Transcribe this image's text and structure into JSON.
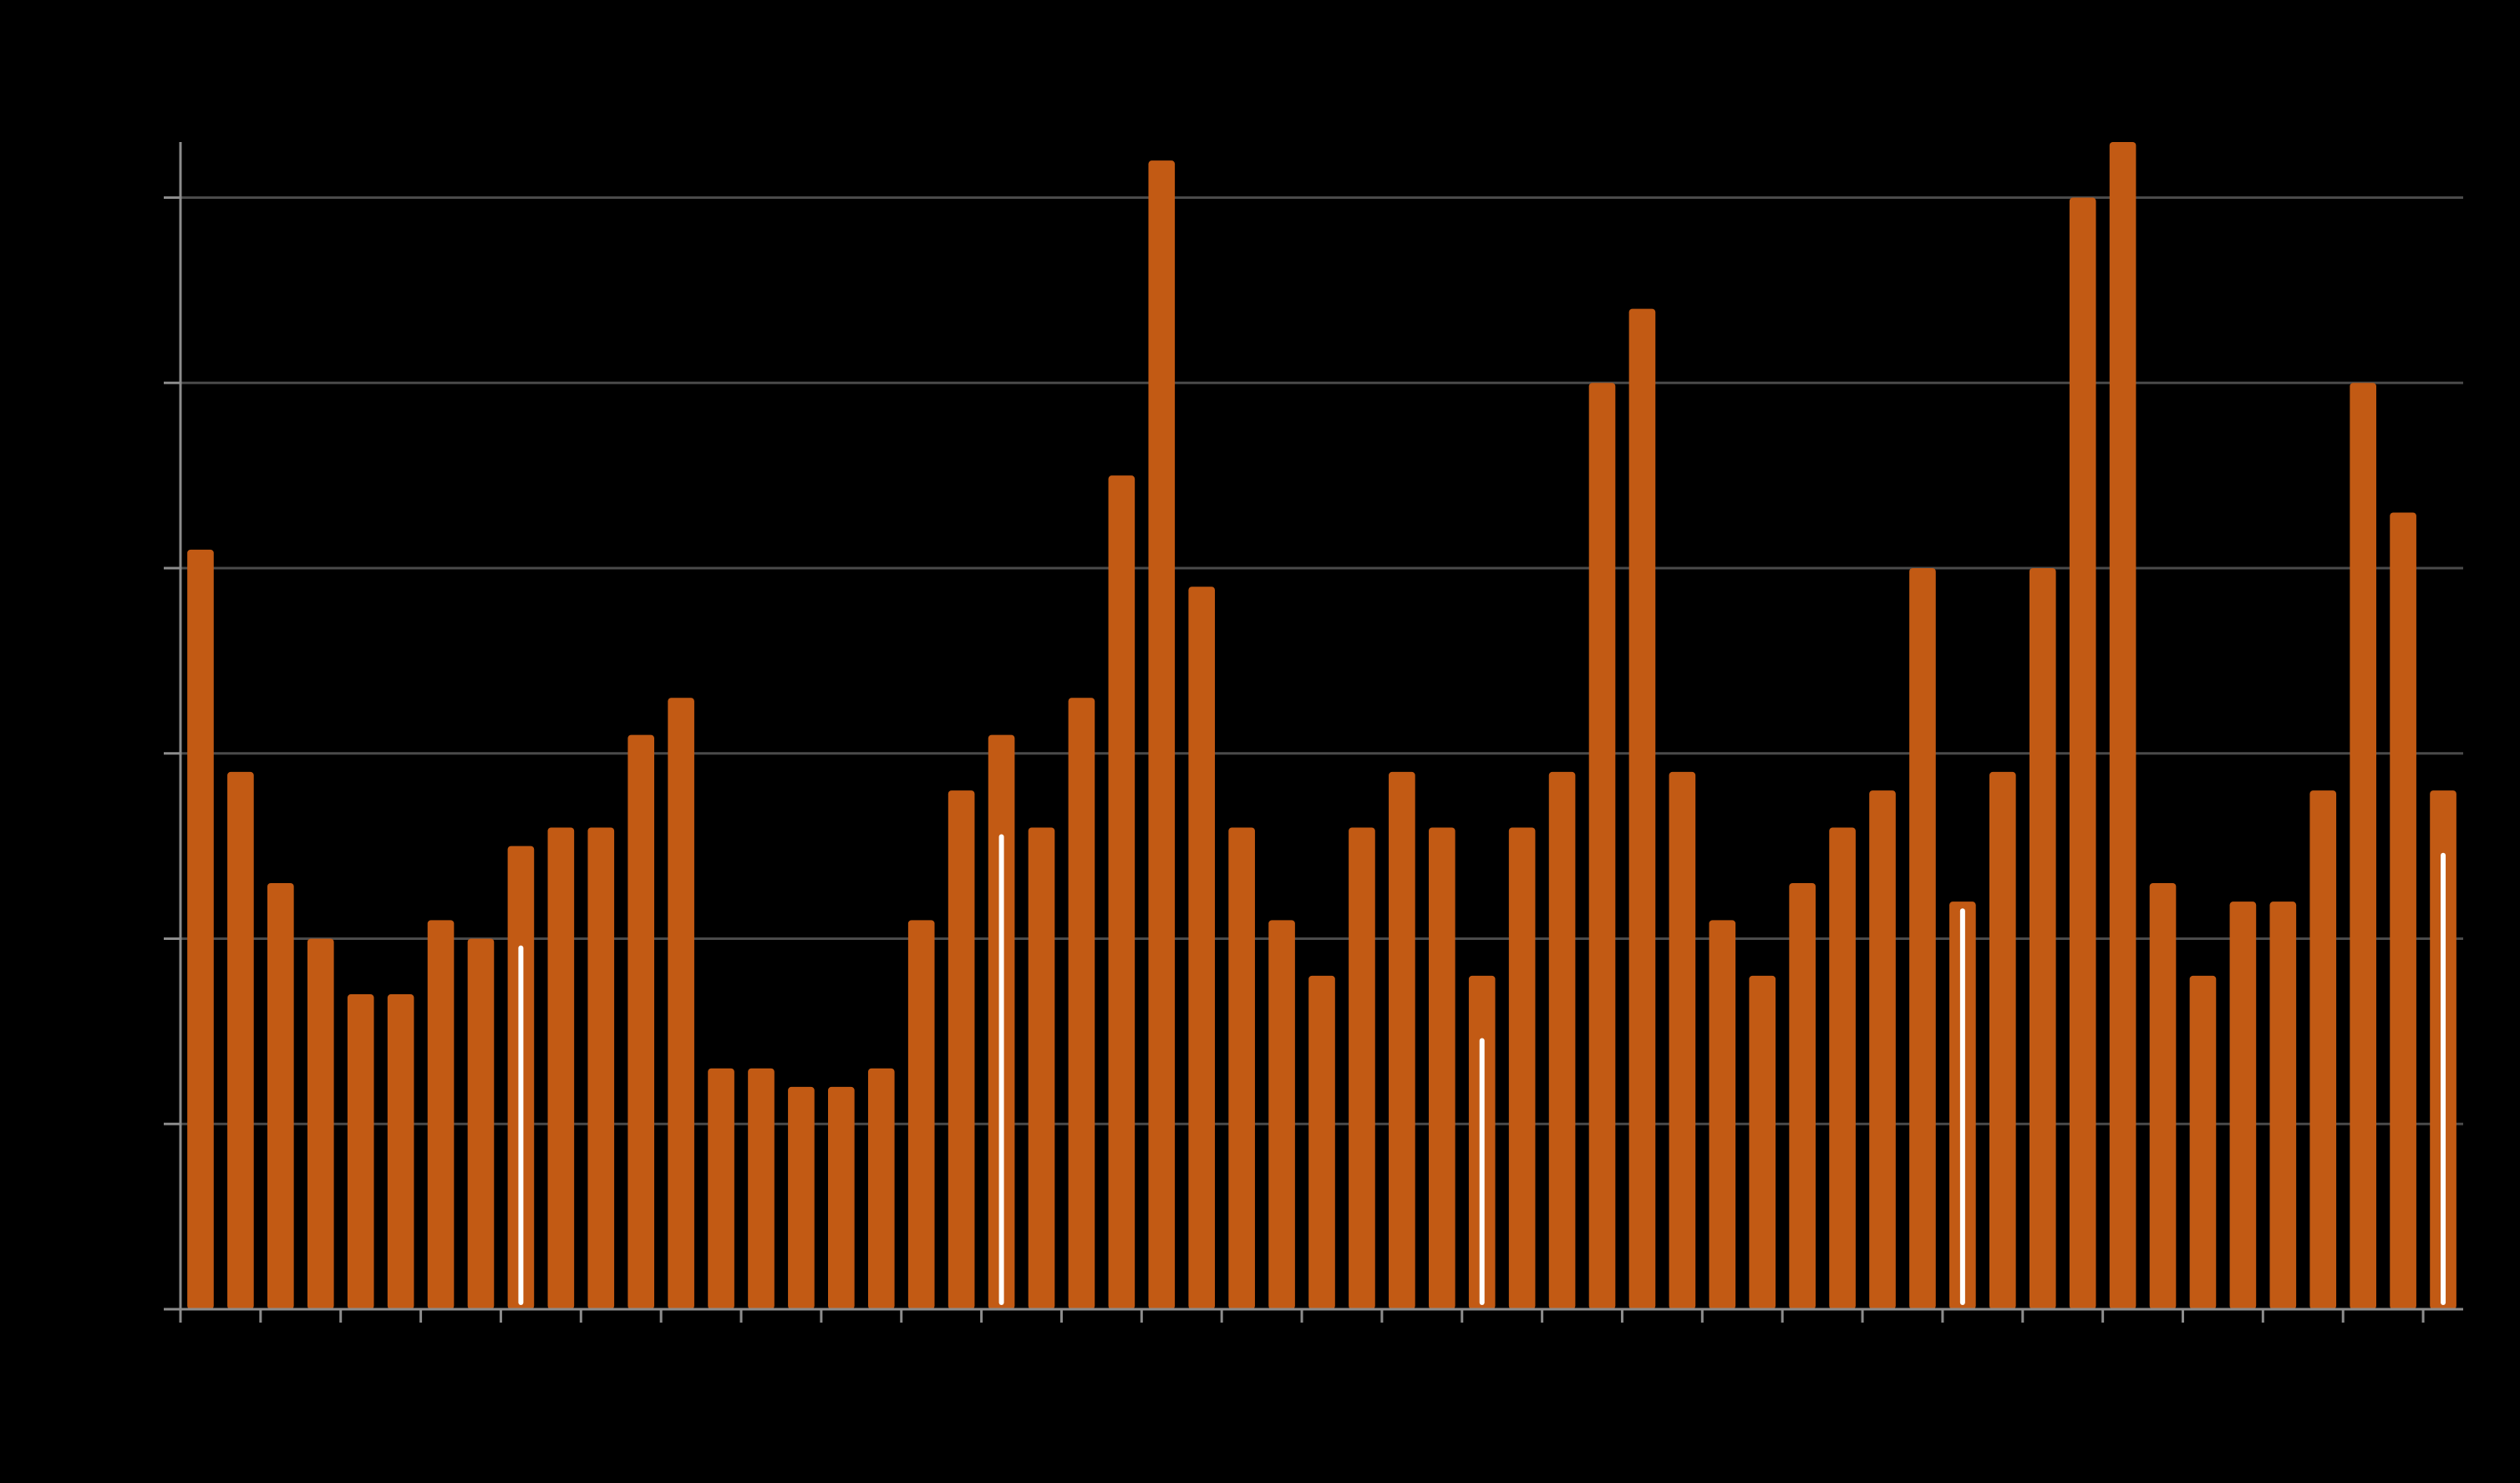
{
  "chart_data": {
    "type": "bar",
    "title": "",
    "xlabel": "",
    "ylabel": "",
    "ylim": [
      0,
      6.3
    ],
    "yticks": [
      0,
      1,
      2,
      3,
      4,
      5,
      6
    ],
    "grid": true,
    "values": [
      4.1,
      2.9,
      2.3,
      2.0,
      1.7,
      1.7,
      2.1,
      2.0,
      2.5,
      2.6,
      2.6,
      3.1,
      3.3,
      1.3,
      1.3,
      1.2,
      1.2,
      1.3,
      2.1,
      2.8,
      3.1,
      2.6,
      3.3,
      4.5,
      6.2,
      3.9,
      2.6,
      2.1,
      1.8,
      2.6,
      2.9,
      2.6,
      1.8,
      2.6,
      2.9,
      5.0,
      5.4,
      2.9,
      2.1,
      1.8,
      2.3,
      2.6,
      2.8,
      4.0,
      2.2,
      2.9,
      4.0,
      6.0,
      6.3,
      2.3,
      1.8,
      2.2,
      2.2,
      2.8,
      5.0,
      4.3,
      2.8
    ],
    "highlighted_indices": [
      8,
      20,
      32,
      44,
      56
    ],
    "highlight_values": [
      1.95,
      2.55,
      1.45,
      2.15,
      2.45
    ],
    "colors": {
      "background": "#000000",
      "bar": "#c25a14",
      "highlight": "#ffffff",
      "grid": "#4a4a4a",
      "axis": "#8c8c8c"
    }
  }
}
